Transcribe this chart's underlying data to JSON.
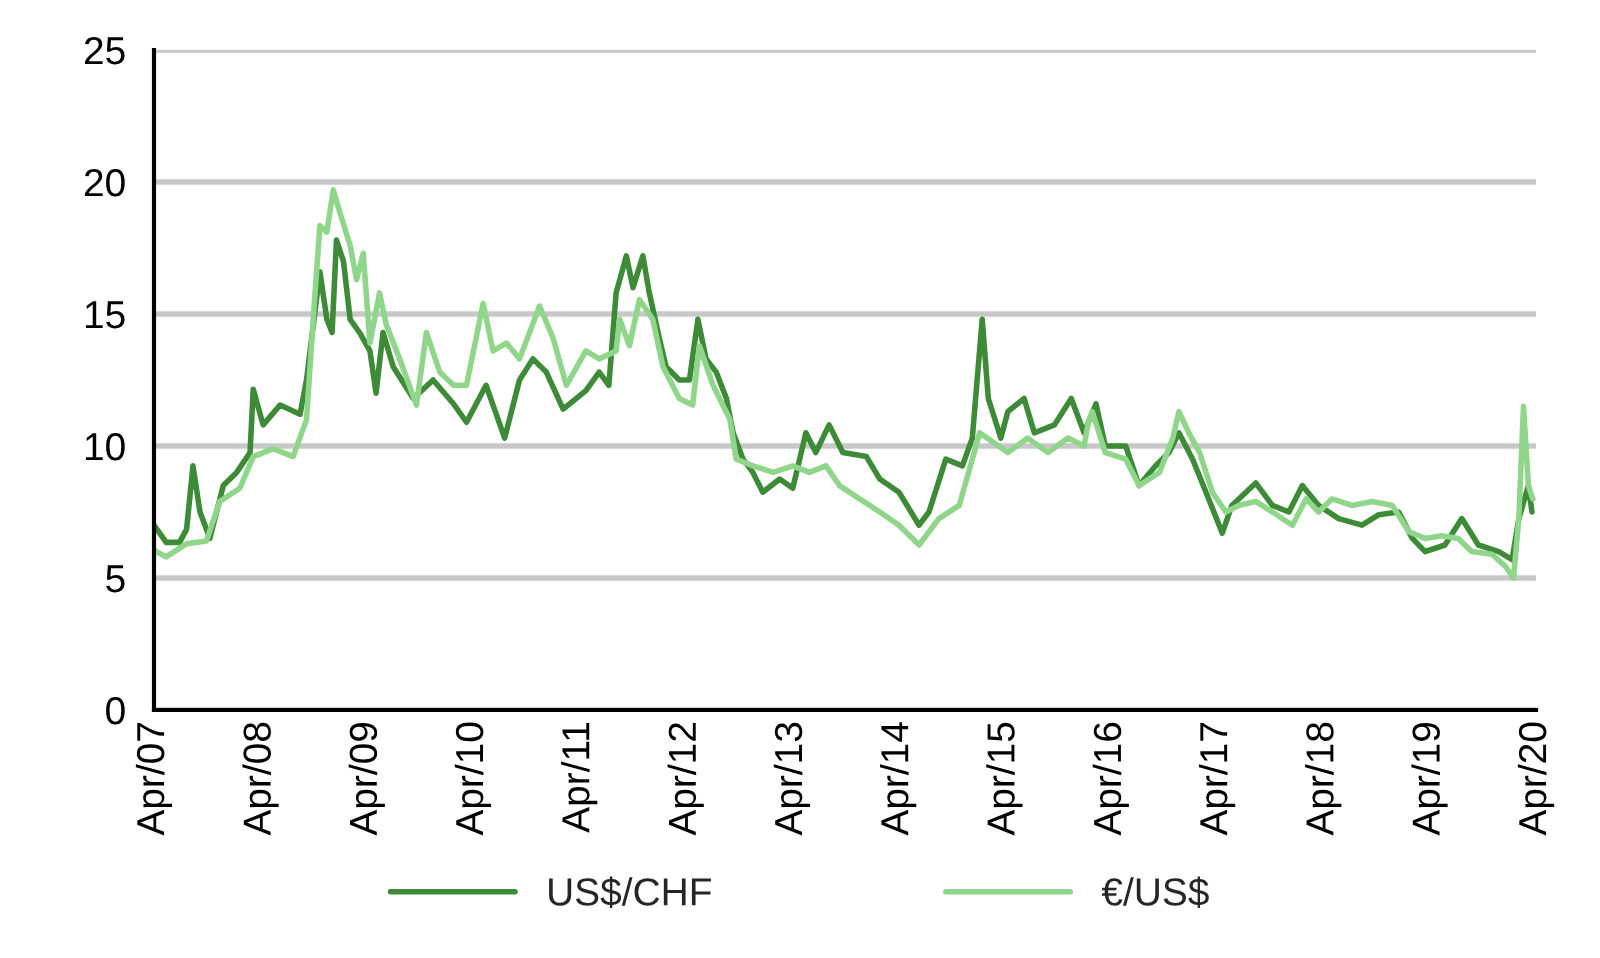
{
  "chart_data": {
    "type": "line",
    "series": [
      {
        "name": "US$/CHF",
        "color": "#3d8b37",
        "x": [
          "2007-04-01",
          "2007-05-13",
          "2007-06-28",
          "2007-07-22",
          "2007-08-13",
          "2007-09-06",
          "2007-10-10",
          "2007-11-25",
          "2008-01-10",
          "2008-02-25",
          "2008-03-07",
          "2008-04-10",
          "2008-06-07",
          "2008-08-15",
          "2008-09-06",
          "2008-10-22",
          "2008-11-15",
          "2008-12-03",
          "2008-12-18",
          "2009-01-11",
          "2009-02-03",
          "2009-03-07",
          "2009-04-12",
          "2009-05-03",
          "2009-05-27",
          "2009-07-01",
          "2009-09-08",
          "2009-11-15",
          "2010-01-24",
          "2010-03-10",
          "2010-05-16",
          "2010-07-19",
          "2010-09-08",
          "2010-10-24",
          "2010-12-09",
          "2011-02-05",
          "2011-04-24",
          "2011-06-09",
          "2011-07-12",
          "2011-08-06",
          "2011-09-10",
          "2011-10-03",
          "2011-11-06",
          "2011-11-28",
          "2012-01-03",
          "2012-01-25",
          "2012-03-10",
          "2012-04-14",
          "2012-05-13",
          "2012-06-10",
          "2012-07-15",
          "2012-08-19",
          "2012-09-11",
          "2012-10-15",
          "2012-11-18",
          "2012-12-22",
          "2013-02-18",
          "2013-04-04",
          "2013-05-19",
          "2013-06-22",
          "2013-08-07",
          "2013-09-23",
          "2013-12-13",
          "2014-01-28",
          "2014-04-04",
          "2014-06-12",
          "2014-07-16",
          "2014-09-12",
          "2014-11-08",
          "2014-12-12",
          "2015-01-15",
          "2015-02-05",
          "2015-03-20",
          "2015-04-13",
          "2015-06-08",
          "2015-07-13",
          "2015-09-20",
          "2015-11-17",
          "2015-12-31",
          "2016-02-10",
          "2016-03-13",
          "2016-05-22",
          "2016-07-07",
          "2016-09-02",
          "2016-10-18",
          "2016-11-21",
          "2017-01-07",
          "2017-02-22",
          "2017-04-19",
          "2017-05-22",
          "2017-08-12",
          "2017-10-08",
          "2017-12-04",
          "2018-01-19",
          "2018-03-16",
          "2018-05-24",
          "2018-08-12",
          "2018-10-09",
          "2018-12-16",
          "2019-02-01",
          "2019-03-17",
          "2019-05-24",
          "2019-07-21",
          "2019-09-16",
          "2019-11-25",
          "2020-01-10",
          "2020-02-02",
          "2020-03-06",
          "2020-03-18"
        ],
        "values": [
          7.0,
          6.35,
          6.35,
          6.85,
          9.25,
          7.5,
          6.5,
          8.5,
          9.0,
          9.75,
          12.15,
          10.8,
          11.55,
          11.2,
          12.5,
          16.6,
          14.8,
          14.3,
          17.8,
          17.0,
          14.8,
          14.3,
          13.6,
          12.0,
          14.3,
          13.0,
          11.8,
          12.5,
          11.6,
          10.9,
          12.3,
          10.3,
          12.5,
          13.3,
          12.8,
          11.4,
          12.1,
          12.8,
          12.3,
          15.8,
          17.2,
          16.0,
          17.2,
          15.8,
          14.0,
          13.0,
          12.5,
          12.5,
          14.8,
          13.3,
          12.8,
          11.8,
          10.5,
          9.5,
          9.0,
          8.25,
          8.75,
          8.4,
          10.5,
          9.75,
          10.8,
          9.75,
          9.6,
          8.75,
          8.25,
          7.0,
          7.5,
          9.5,
          9.25,
          10.3,
          14.8,
          11.8,
          10.3,
          11.3,
          11.8,
          10.5,
          10.8,
          11.8,
          10.5,
          11.6,
          10.0,
          10.0,
          8.5,
          9.25,
          9.75,
          10.5,
          9.5,
          8.25,
          6.7,
          7.75,
          8.6,
          7.75,
          7.5,
          8.5,
          7.75,
          7.25,
          7.0,
          7.4,
          7.5,
          6.5,
          6.0,
          6.25,
          7.25,
          6.25,
          6.0,
          5.7,
          7.25,
          8.5,
          7.5
        ]
      },
      {
        "name": "€/US$",
        "color": "#90d68a",
        "x": [
          "2007-04-10",
          "2007-05-13",
          "2007-07-22",
          "2007-09-28",
          "2007-11-13",
          "2008-01-21",
          "2008-03-07",
          "2008-05-15",
          "2008-07-22",
          "2008-09-06",
          "2008-10-01",
          "2008-10-22",
          "2008-11-15",
          "2008-12-07",
          "2008-12-31",
          "2009-02-03",
          "2009-02-25",
          "2009-03-20",
          "2009-04-12",
          "2009-05-15",
          "2009-06-07",
          "2009-07-23",
          "2009-09-19",
          "2009-10-23",
          "2009-12-08",
          "2010-01-24",
          "2010-03-10",
          "2010-05-06",
          "2010-06-09",
          "2010-07-25",
          "2010-09-08",
          "2010-11-16",
          "2011-01-01",
          "2011-02-16",
          "2011-04-24",
          "2011-06-09",
          "2011-08-06",
          "2011-08-18",
          "2011-09-21",
          "2011-10-25",
          "2011-12-10",
          "2012-01-14",
          "2012-03-10",
          "2012-04-25",
          "2012-05-18",
          "2012-07-04",
          "2012-08-31",
          "2012-09-22",
          "2012-11-18",
          "2013-01-27",
          "2013-04-04",
          "2013-05-31",
          "2013-07-27",
          "2013-09-12",
          "2013-11-19",
          "2014-01-28",
          "2014-04-04",
          "2014-06-12",
          "2014-08-19",
          "2014-10-28",
          "2014-12-12",
          "2015-01-06",
          "2015-04-13",
          "2015-06-20",
          "2015-08-29",
          "2015-11-06",
          "2015-12-31",
          "2016-01-13",
          "2016-01-28",
          "2016-03-13",
          "2016-05-22",
          "2016-07-07",
          "2016-09-15",
          "2016-10-31",
          "2016-11-21",
          "2016-12-25",
          "2017-01-31",
          "2017-03-16",
          "2017-05-01",
          "2017-06-15",
          "2017-08-12",
          "2017-10-08",
          "2017-12-16",
          "2018-02-01",
          "2018-03-16",
          "2018-05-01",
          "2018-07-09",
          "2018-09-16",
          "2018-11-24",
          "2019-01-20",
          "2019-03-17",
          "2019-05-13",
          "2019-07-09",
          "2019-08-24",
          "2019-11-02",
          "2019-12-17",
          "2020-01-15",
          "2020-02-02",
          "2020-02-18",
          "2020-03-06",
          "2020-03-21"
        ],
        "values": [
          6.0,
          5.8,
          6.3,
          6.4,
          7.9,
          8.4,
          9.6,
          9.9,
          9.6,
          11.0,
          15.1,
          18.35,
          18.1,
          19.7,
          18.8,
          17.6,
          16.3,
          17.3,
          13.9,
          15.8,
          14.6,
          13.3,
          11.55,
          14.3,
          12.8,
          12.3,
          12.3,
          15.4,
          13.6,
          13.9,
          13.3,
          15.3,
          14.1,
          12.3,
          13.6,
          13.3,
          13.6,
          14.8,
          13.8,
          15.55,
          14.8,
          13.0,
          11.8,
          11.55,
          13.8,
          12.3,
          11.0,
          9.5,
          9.25,
          9.0,
          9.25,
          9.0,
          9.25,
          8.5,
          8.0,
          7.5,
          7.0,
          6.25,
          7.25,
          7.75,
          9.5,
          10.5,
          9.75,
          10.3,
          9.75,
          10.3,
          10.0,
          10.8,
          11.3,
          9.75,
          9.5,
          8.5,
          9.0,
          10.3,
          11.3,
          10.5,
          9.75,
          8.25,
          7.5,
          7.75,
          7.9,
          7.5,
          7.0,
          8.0,
          7.5,
          8.0,
          7.75,
          7.9,
          7.75,
          6.75,
          6.5,
          6.6,
          6.5,
          6.0,
          5.9,
          5.45,
          5.0,
          7.25,
          11.5,
          8.5,
          8.0
        ]
      }
    ],
    "xlim": [
      "2007-04-01",
      "2020-04-01"
    ],
    "xticks": [
      {
        "value": "2007-04-01",
        "label": "Apr/07"
      },
      {
        "value": "2008-04-01",
        "label": "Apr/08"
      },
      {
        "value": "2009-04-01",
        "label": "Apr/09"
      },
      {
        "value": "2010-04-01",
        "label": "Apr/10"
      },
      {
        "value": "2011-04-01",
        "label": "Apr/11"
      },
      {
        "value": "2012-04-01",
        "label": "Apr/12"
      },
      {
        "value": "2013-04-01",
        "label": "Apr/13"
      },
      {
        "value": "2014-04-01",
        "label": "Apr/14"
      },
      {
        "value": "2015-04-01",
        "label": "Apr/15"
      },
      {
        "value": "2016-04-01",
        "label": "Apr/16"
      },
      {
        "value": "2017-04-01",
        "label": "Apr/17"
      },
      {
        "value": "2018-04-01",
        "label": "Apr/18"
      },
      {
        "value": "2019-04-01",
        "label": "Apr/19"
      },
      {
        "value": "2020-04-01",
        "label": "Apr/20"
      }
    ],
    "ylim": [
      0,
      25
    ],
    "yticks": [
      0,
      5,
      10,
      15,
      20,
      25
    ],
    "grid": "y",
    "legend": "bottom",
    "line_style": "solid"
  }
}
